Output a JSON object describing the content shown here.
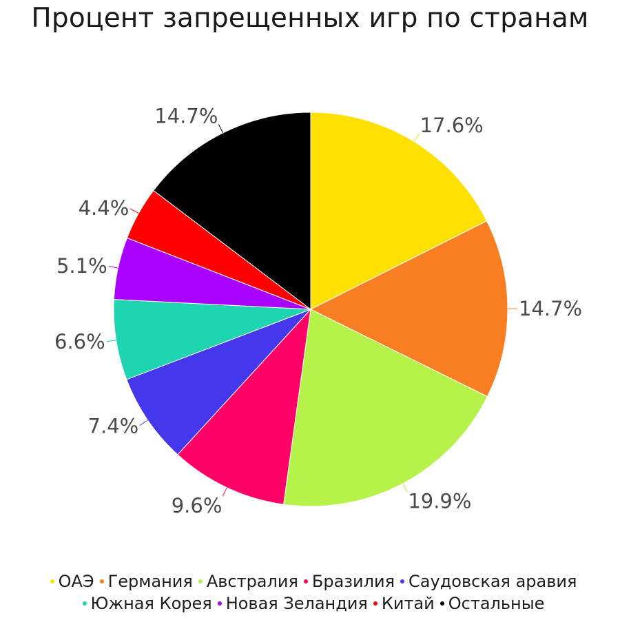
{
  "chart_data": {
    "type": "pie",
    "title": "Процент запрещенных игр по странам",
    "slices": [
      {
        "name": "ОАЭ",
        "value": 17.6,
        "label": "17.6%",
        "color": "#FFE000"
      },
      {
        "name": "Германия",
        "value": 14.7,
        "label": "14.7%",
        "color": "#F97E21"
      },
      {
        "name": "Австралия",
        "value": 19.9,
        "label": "19.9%",
        "color": "#B5F24A"
      },
      {
        "name": "Бразилия",
        "value": 9.6,
        "label": "9.6%",
        "color": "#FF0066"
      },
      {
        "name": "Саудовская аравия",
        "value": 7.4,
        "label": "7.4%",
        "color": "#4437EC"
      },
      {
        "name": "Южная Корея",
        "value": 6.6,
        "label": "6.6%",
        "color": "#1FD4B0"
      },
      {
        "name": "Новая Зеландия",
        "value": 5.1,
        "label": "5.1%",
        "color": "#AA00FF"
      },
      {
        "name": "Китай",
        "value": 4.4,
        "label": "4.4%",
        "color": "#FF0000"
      },
      {
        "name": "Остальные",
        "value": 14.7,
        "label": "14.7%",
        "color": "#000000"
      }
    ],
    "start_angle": "12 o'clock",
    "direction": "clockwise",
    "legend_position": "bottom"
  }
}
